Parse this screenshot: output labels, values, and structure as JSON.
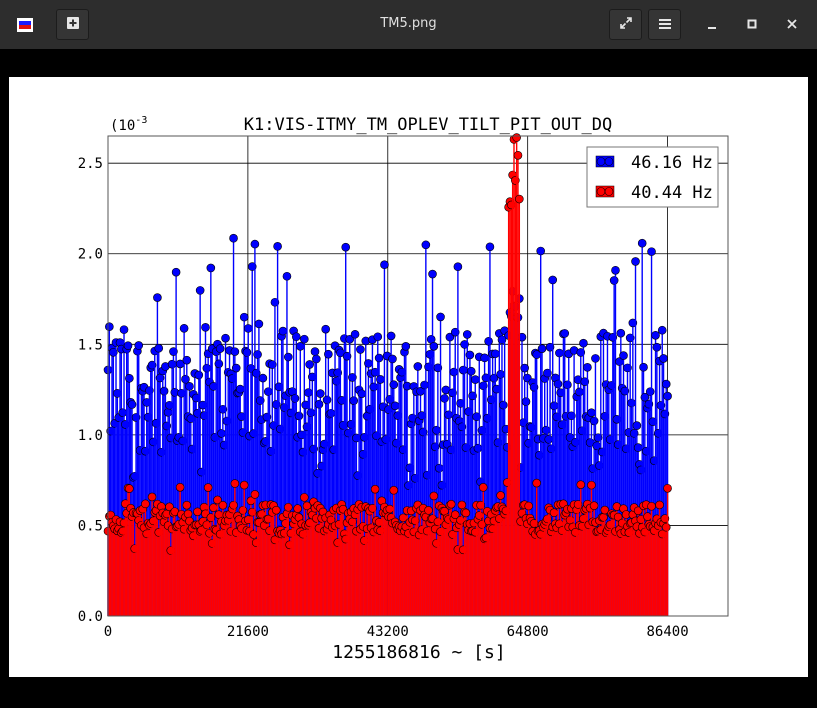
{
  "window": {
    "title": "TM5.png",
    "icons": [
      "app-flag-icon",
      "new-tab-icon",
      "fullscreen-icon",
      "menu-icon",
      "minimize-icon",
      "maximize-icon",
      "close-icon"
    ]
  },
  "chart_data": {
    "type": "scatter",
    "title": "K1:VIS-ITMY_TM_OPLEV_TILT_PIT_OUT_DQ",
    "xlabel": "1255186816 ~ [s]",
    "ylabel": "",
    "y_exponent_label": "(10",
    "y_exponent_value": "-3",
    "xlim": [
      0,
      86400
    ],
    "ylim": [
      0,
      0.00265
    ],
    "x_ticks": [
      "0",
      "21600",
      "43200",
      "64800",
      "86400"
    ],
    "y_ticks": [
      "0.0",
      "0.5",
      "1.0",
      "1.5",
      "2.0",
      "2.5"
    ],
    "grid": true,
    "legend_position": "top-right",
    "series": [
      {
        "name": "46.16 Hz",
        "color": "#0000ff",
        "range": [
          0.0009,
          0.0016
        ],
        "spike_at": 62700,
        "spike_value": 0.0018
      },
      {
        "name": "40.44 Hz",
        "color": "#ff0000",
        "range": [
          0.00045,
          0.00062
        ],
        "spike_at": 62700,
        "spike_value": 0.00265
      }
    ]
  }
}
